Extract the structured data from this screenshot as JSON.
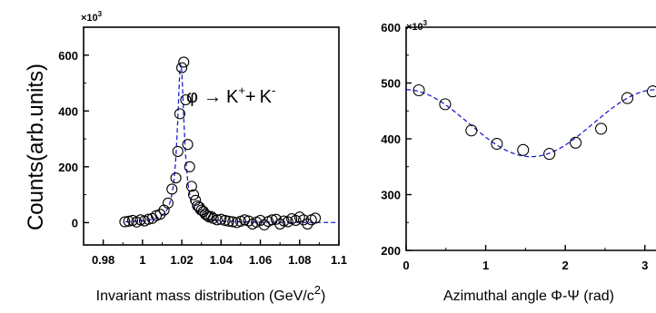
{
  "figure": {
    "ylabel": "Counts(arb.units)"
  },
  "chart_data": [
    {
      "type": "scatter",
      "xlabel": "Invariant mass distribution (GeV/c",
      "xlabel_sup": "2",
      "xlabel_tail": ")",
      "multiplier": "×10",
      "multiplier_exp": "3",
      "annotation": {
        "phi": "φ",
        "arrow": "→",
        "kplus": "K",
        "kplus_sup": "+",
        "plus": "+",
        "kminus": "K",
        "kminus_sup": "-"
      },
      "xlim": [
        0.97,
        1.1
      ],
      "ylim": [
        -80,
        700
      ],
      "xticks": [
        0.98,
        1,
        1.02,
        1.04,
        1.06,
        1.08,
        1.1
      ],
      "xtick_labels": [
        "0.98",
        "1",
        "1.02",
        "1.04",
        "1.06",
        "1.08",
        "1.1"
      ],
      "yticks": [
        0,
        200,
        400,
        600
      ],
      "ytick_labels": [
        "0",
        "200",
        "400",
        "600"
      ],
      "grid": false,
      "points": {
        "x": [
          0.991,
          0.993,
          0.995,
          0.997,
          0.999,
          1.001,
          1.003,
          1.005,
          1.007,
          1.009,
          1.011,
          1.013,
          1.015,
          1.017,
          1.018,
          1.019,
          1.02,
          1.021,
          1.022,
          1.023,
          1.024,
          1.025,
          1.026,
          1.027,
          1.028,
          1.029,
          1.03,
          1.031,
          1.032,
          1.033,
          1.034,
          1.035,
          1.036,
          1.038,
          1.04,
          1.042,
          1.044,
          1.046,
          1.048,
          1.05,
          1.052,
          1.054,
          1.056,
          1.058,
          1.06,
          1.062,
          1.064,
          1.066,
          1.068,
          1.07,
          1.072,
          1.074,
          1.076,
          1.078,
          1.08,
          1.082,
          1.084,
          1.086,
          1.088
        ],
        "y": [
          3,
          5,
          8,
          2,
          10,
          6,
          12,
          15,
          25,
          30,
          45,
          70,
          120,
          160,
          255,
          390,
          555,
          575,
          440,
          280,
          200,
          130,
          100,
          80,
          60,
          55,
          45,
          40,
          30,
          25,
          20,
          22,
          15,
          10,
          12,
          8,
          5,
          3,
          0,
          5,
          10,
          6,
          -5,
          2,
          8,
          -8,
          4,
          10,
          12,
          -5,
          6,
          3,
          14,
          8,
          20,
          10,
          -5,
          10,
          16
        ]
      },
      "fit": {
        "peak_x": 1.0195,
        "peak_y": 570,
        "width": 0.0021,
        "baseline": 0
      }
    },
    {
      "type": "scatter",
      "xlabel": "Azimuthal angle  Φ-Ψ (rad)",
      "multiplier": "×10",
      "multiplier_exp": "3",
      "xlim": [
        0,
        3.14
      ],
      "ylim": [
        200,
        600
      ],
      "xticks": [
        0,
        1,
        2,
        3
      ],
      "xtick_labels": [
        "0",
        "1",
        "2",
        "3"
      ],
      "yticks": [
        200,
        300,
        400,
        500,
        600
      ],
      "ytick_labels": [
        "200",
        "300",
        "400",
        "500",
        "600"
      ],
      "grid": false,
      "points": {
        "x": [
          0.16,
          0.49,
          0.82,
          1.14,
          1.47,
          1.8,
          2.13,
          2.45,
          2.78,
          3.1
        ],
        "y": [
          487,
          462,
          415,
          391,
          380,
          373,
          393,
          418,
          473,
          485
        ]
      },
      "fit": {
        "mean": 428,
        "amplitude": 60,
        "phase": 0.0
      }
    }
  ]
}
